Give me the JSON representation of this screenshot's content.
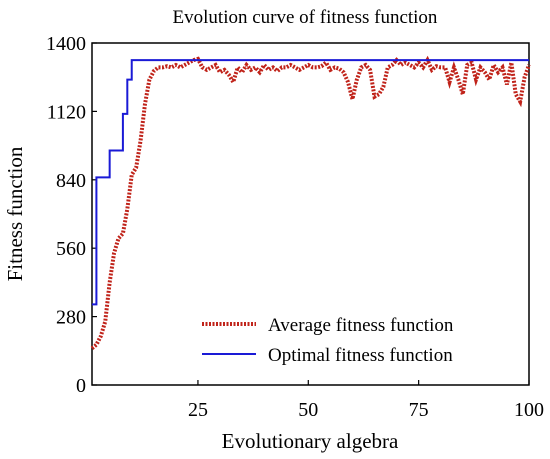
{
  "chart_data": {
    "type": "line",
    "title": "Evolution curve of fitness function",
    "xlabel": "Evolutionary algebra",
    "ylabel": "Fitness function",
    "xlim": [
      1,
      100
    ],
    "ylim": [
      0,
      1400
    ],
    "x_ticks": [
      25,
      50,
      75,
      100
    ],
    "y_ticks": [
      0,
      280,
      560,
      840,
      1120,
      1400
    ],
    "grid": false,
    "legend_position": "bottom-right",
    "series": [
      {
        "name": "Average fitness function",
        "color": "#c0231a",
        "style": "dotted",
        "x": [
          1,
          2,
          3,
          4,
          5,
          6,
          7,
          8,
          9,
          10,
          11,
          12,
          13,
          14,
          15,
          16,
          17,
          18,
          19,
          20,
          21,
          22,
          23,
          24,
          25,
          26,
          27,
          28,
          29,
          30,
          31,
          32,
          33,
          34,
          35,
          36,
          37,
          38,
          39,
          40,
          41,
          42,
          43,
          44,
          45,
          46,
          47,
          48,
          49,
          50,
          51,
          52,
          53,
          54,
          55,
          56,
          57,
          58,
          59,
          60,
          61,
          62,
          63,
          64,
          65,
          66,
          67,
          68,
          69,
          70,
          71,
          72,
          73,
          74,
          75,
          76,
          77,
          78,
          79,
          80,
          81,
          82,
          83,
          84,
          85,
          86,
          87,
          88,
          89,
          90,
          91,
          92,
          93,
          94,
          95,
          96,
          97,
          98,
          99,
          100
        ],
        "values": [
          150,
          165,
          200,
          260,
          420,
          540,
          600,
          620,
          720,
          860,
          890,
          1000,
          1150,
          1250,
          1285,
          1300,
          1300,
          1305,
          1300,
          1310,
          1300,
          1310,
          1320,
          1330,
          1335,
          1300,
          1290,
          1300,
          1310,
          1280,
          1290,
          1270,
          1240,
          1300,
          1280,
          1310,
          1290,
          1300,
          1280,
          1310,
          1290,
          1300,
          1285,
          1300,
          1300,
          1310,
          1300,
          1290,
          1300,
          1310,
          1300,
          1300,
          1305,
          1320,
          1290,
          1300,
          1295,
          1280,
          1240,
          1170,
          1250,
          1300,
          1310,
          1290,
          1180,
          1190,
          1220,
          1300,
          1310,
          1330,
          1310,
          1320,
          1310,
          1300,
          1320,
          1300,
          1330,
          1290,
          1305,
          1300,
          1300,
          1240,
          1300,
          1250,
          1190,
          1310,
          1320,
          1250,
          1300,
          1280,
          1250,
          1310,
          1280,
          1300,
          1230,
          1320,
          1190,
          1160,
          1260,
          1310
        ]
      },
      {
        "name": "Optimal fitness function",
        "color": "#1a1ad6",
        "style": "solid",
        "x": [
          1,
          2,
          3,
          4,
          5,
          6,
          7,
          8,
          9,
          10,
          11,
          100
        ],
        "values": [
          330,
          850,
          850,
          850,
          960,
          960,
          960,
          1110,
          1250,
          1330,
          1330,
          1330
        ],
        "step": true
      }
    ]
  }
}
